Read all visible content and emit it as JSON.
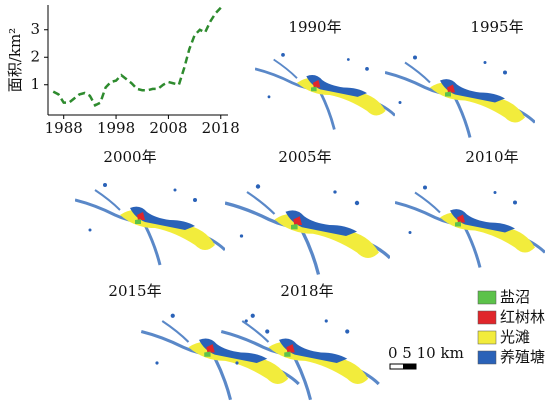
{
  "chart_data": {
    "type": "line",
    "ylabel": "面积/km²",
    "x": [
      1986,
      1987,
      1988,
      1989,
      1990,
      1991,
      1992,
      1993,
      1994,
      1995,
      1996,
      1997,
      1998,
      1999,
      2000,
      2001,
      2002,
      2003,
      2004,
      2005,
      2006,
      2007,
      2008,
      2009,
      2010,
      2011,
      2012,
      2013,
      2014,
      2015,
      2016,
      2017,
      2018
    ],
    "series": [
      {
        "color": "#2e8b2e",
        "values": [
          0.75,
          0.65,
          0.35,
          0.35,
          0.5,
          0.65,
          0.7,
          0.6,
          0.25,
          0.35,
          0.9,
          1.1,
          1.15,
          1.35,
          1.2,
          1.05,
          0.85,
          0.8,
          0.8,
          0.85,
          0.85,
          1.0,
          1.1,
          1.05,
          1.0,
          1.6,
          2.3,
          2.8,
          3.0,
          2.9,
          3.3,
          3.6,
          3.8
        ]
      }
    ],
    "xlim": [
      1985,
      2019
    ],
    "ylim": [
      -0.1,
      3.9
    ],
    "xticks": [
      1988,
      1998,
      2008,
      2018
    ],
    "yticks": [
      1,
      2,
      3
    ]
  },
  "maps": {
    "panels": [
      "1990年",
      "1995年",
      "2000年",
      "2005年",
      "2010年",
      "2015年",
      "2018年"
    ],
    "legend": [
      {
        "name": "盐沼",
        "color": "#5cc24a"
      },
      {
        "name": "红树林",
        "color": "#e0262b"
      },
      {
        "name": "光滩",
        "color": "#f2ec3c"
      },
      {
        "name": "养殖塘",
        "color": "#2a62b8"
      }
    ],
    "scale_label": "0 5 10 km"
  }
}
